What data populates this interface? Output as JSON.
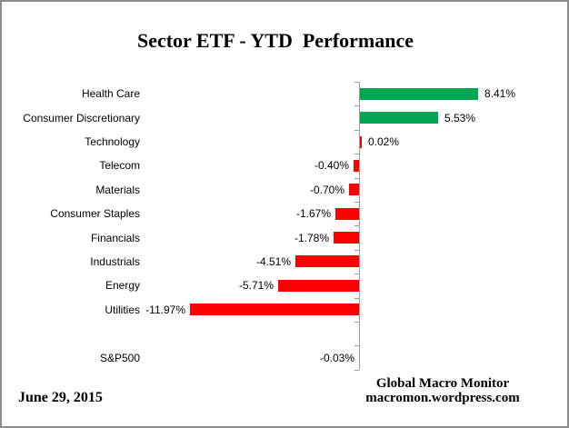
{
  "chart_data": {
    "type": "bar",
    "orientation": "horizontal",
    "title": "Sector ETF - YTD  Performance",
    "value_format": "percent",
    "grid": false,
    "legend": false,
    "xlim": [
      -12.5,
      9.5
    ],
    "palette": {
      "green": "#00A651",
      "red": "#FF0000",
      "axis_gray": "#9C9C9C"
    },
    "categories": [
      "Health Care",
      "Consumer Discretionary",
      "Technology",
      "Telecom",
      "Materials",
      "Consumer Staples",
      "Financials",
      "Industrials",
      "Energy",
      "Utilities",
      "",
      "S&P500"
    ],
    "values": [
      8.41,
      5.53,
      0.02,
      -0.4,
      -0.7,
      -1.67,
      -1.78,
      -4.51,
      -5.71,
      -11.97,
      null,
      -0.03
    ],
    "items": [
      {
        "label": "Health Care",
        "value": 8.41,
        "display": "8.41%",
        "color": "green"
      },
      {
        "label": "Consumer Discretionary",
        "value": 5.53,
        "display": "5.53%",
        "color": "green"
      },
      {
        "label": "Technology",
        "value": 0.02,
        "display": "0.02%",
        "color": "red"
      },
      {
        "label": "Telecom",
        "value": -0.4,
        "display": "-0.40%",
        "color": "red"
      },
      {
        "label": "Materials",
        "value": -0.7,
        "display": "-0.70%",
        "color": "red"
      },
      {
        "label": "Consumer Staples",
        "value": -1.67,
        "display": "-1.67%",
        "color": "red"
      },
      {
        "label": "Financials",
        "value": -1.78,
        "display": "-1.78%",
        "color": "red"
      },
      {
        "label": "Industrials",
        "value": -4.51,
        "display": "-4.51%",
        "color": "red"
      },
      {
        "label": "Energy",
        "value": -5.71,
        "display": "-5.71%",
        "color": "red"
      },
      {
        "label": "Utilities",
        "value": -11.97,
        "display": "-11.97%",
        "color": "red"
      },
      {
        "label": "",
        "value": null,
        "display": "",
        "color": null
      },
      {
        "label": "S&P500",
        "value": -0.03,
        "display": "-0.03%",
        "color": "red"
      }
    ]
  },
  "footer": {
    "date": "June 29, 2015",
    "brand_line1": "Global Macro Monitor",
    "brand_line2": "macromon.wordpress.com"
  }
}
